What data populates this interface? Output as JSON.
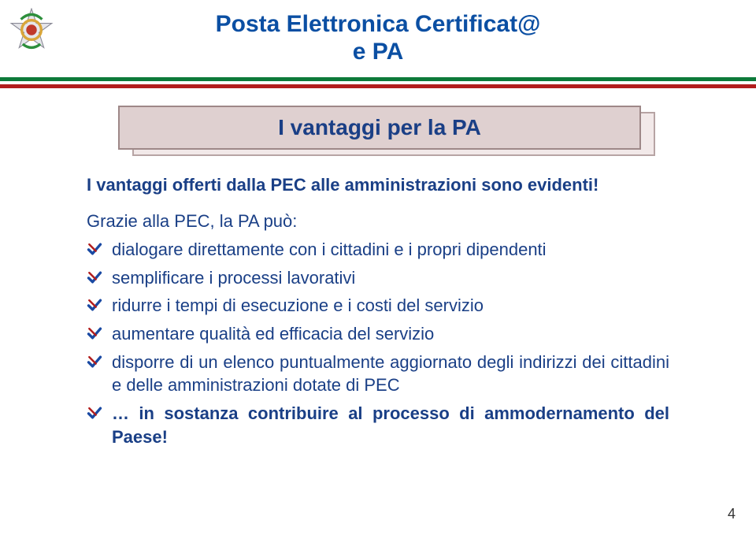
{
  "colors": {
    "title": "#0b4fa3",
    "body": "#1a3f86",
    "stripe_green": "#0d7a3a",
    "stripe_white": "#ffffff",
    "stripe_red": "#b21d1d",
    "ribbon_front": "#dfd0d0",
    "ribbon_back": "#f2e9e9",
    "ribbon_border": "#9e8888",
    "tick_body": "#1a4aa3",
    "tick_cross": "#b21d1d",
    "page_num": "#333333",
    "emblem_gold": "#d9a63a",
    "emblem_silver": "#e6e6ea",
    "emblem_red": "#c0392b",
    "emblem_green": "#2d8f3c"
  },
  "title": {
    "line1": "Posta Elettronica Certificat@",
    "line2": "e PA"
  },
  "ribbon": "I vantaggi per la PA",
  "content": {
    "intro": "I vantaggi offerti dalla PEC alle amministrazioni sono evidenti!",
    "lead": "Grazie alla PEC, la PA può:",
    "bullets": [
      {
        "text": "dialogare direttamente con i cittadini e i propri dipendenti",
        "highlight": false
      },
      {
        "text": "semplificare i processi lavorativi",
        "highlight": false
      },
      {
        "text": "ridurre i tempi di esecuzione e i costi del servizio",
        "highlight": false
      },
      {
        "text": "aumentare qualità ed efficacia del servizio",
        "highlight": false
      },
      {
        "text": "disporre di un elenco puntualmente aggiornato degli indirizzi dei cittadini e delle amministrazioni dotate di PEC",
        "highlight": false
      },
      {
        "text": "… in sostanza contribuire al processo di ammodernamento del Paese!",
        "highlight": true
      }
    ]
  },
  "page_number": "4"
}
